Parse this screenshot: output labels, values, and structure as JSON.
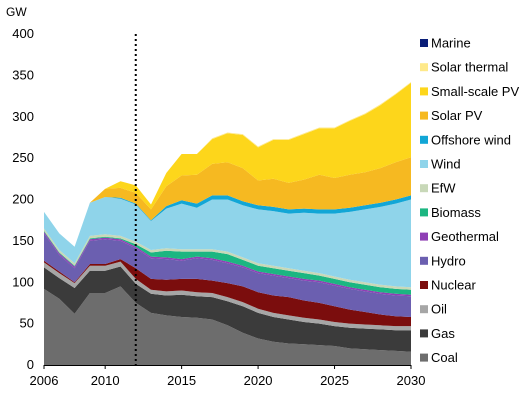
{
  "chart_data": {
    "type": "area",
    "stacked": true,
    "ylabel": "GW",
    "ylim": [
      0,
      400
    ],
    "yticks": [
      0,
      50,
      100,
      150,
      200,
      250,
      300,
      350,
      400
    ],
    "xlim": [
      2006,
      2030
    ],
    "xticks": [
      2006,
      2010,
      2015,
      2020,
      2025,
      2030
    ],
    "projection_start": 2012,
    "grid": false,
    "legend_position": "right",
    "x": [
      2006,
      2007,
      2008,
      2009,
      2010,
      2011,
      2012,
      2013,
      2014,
      2015,
      2016,
      2017,
      2018,
      2019,
      2020,
      2021,
      2022,
      2023,
      2024,
      2025,
      2026,
      2027,
      2028,
      2029,
      2030
    ],
    "series": [
      {
        "name": "Coal",
        "color": "#6d6d6d",
        "values": [
          92,
          80,
          62,
          87,
          87,
          95,
          75,
          63,
          60,
          58,
          57,
          55,
          48,
          39,
          32,
          28,
          26,
          25,
          24,
          23,
          20,
          19,
          18,
          17,
          16
        ]
      },
      {
        "name": "Gas",
        "color": "#3b3b3b",
        "values": [
          26,
          25,
          31,
          27,
          27,
          24,
          23,
          23,
          24,
          27,
          26,
          27,
          29,
          32,
          31,
          30,
          29,
          27,
          26,
          24,
          25,
          25,
          25,
          25,
          26
        ]
      },
      {
        "name": "Oil",
        "color": "#a6a6a6",
        "values": [
          6,
          6,
          6,
          6,
          6,
          6,
          6,
          5,
          5,
          5,
          5,
          5,
          5,
          5,
          5,
          5,
          5,
          5,
          5,
          5,
          5,
          5,
          5,
          5,
          5
        ]
      },
      {
        "name": "Nuclear",
        "color": "#7b0d0d",
        "values": [
          2,
          2,
          1,
          2,
          2,
          3,
          13,
          13,
          14,
          14,
          16,
          15,
          17,
          19,
          20,
          21,
          22,
          21,
          20,
          19,
          17,
          15,
          13,
          12,
          11
        ]
      },
      {
        "name": "Hydro",
        "color": "#6b5fb0",
        "values": [
          33,
          20,
          17,
          28,
          30,
          22,
          24,
          25,
          25,
          22,
          25,
          25,
          24,
          23,
          23,
          24,
          23,
          24,
          25,
          25,
          25,
          25,
          25,
          25,
          25
        ]
      },
      {
        "name": "Geothermal",
        "color": "#8f3fb5",
        "values": [
          2,
          2,
          2,
          2,
          2,
          2,
          2,
          2,
          2,
          2,
          2,
          2,
          2,
          2,
          2,
          2,
          2,
          2,
          2,
          2,
          2,
          2,
          2,
          2,
          2
        ]
      },
      {
        "name": "Biomass",
        "color": "#1cb681",
        "values": [
          1,
          1,
          1,
          1,
          1,
          1,
          3,
          5,
          8,
          9,
          6,
          8,
          9,
          7,
          7,
          7,
          7,
          7,
          6,
          6,
          6,
          6,
          6,
          6,
          6
        ]
      },
      {
        "name": "EfW",
        "color": "#c8d8b8",
        "values": [
          3,
          3,
          3,
          3,
          3,
          3,
          3,
          3,
          3,
          3,
          3,
          3,
          3,
          3,
          3,
          3,
          3,
          3,
          3,
          3,
          3,
          3,
          3,
          3,
          3
        ]
      },
      {
        "name": "Wind",
        "color": "#8fd4ea",
        "values": [
          20,
          20,
          20,
          40,
          45,
          45,
          45,
          35,
          48,
          55,
          50,
          60,
          63,
          63,
          65,
          66,
          66,
          70,
          72,
          76,
          82,
          88,
          94,
          100,
          106
        ]
      },
      {
        "name": "Offshore wind",
        "color": "#12a6d6",
        "values": [
          0,
          0,
          0,
          0,
          0,
          1,
          1,
          1,
          3,
          4,
          5,
          5,
          5,
          5,
          5,
          5,
          5,
          5,
          5,
          5,
          5,
          5,
          5,
          5,
          5
        ]
      },
      {
        "name": "Solar PV",
        "color": "#f6b921",
        "values": [
          0,
          0,
          0,
          0,
          10,
          12,
          13,
          13,
          24,
          30,
          35,
          38,
          40,
          40,
          30,
          34,
          32,
          35,
          42,
          38,
          40,
          40,
          42,
          45,
          46
        ]
      },
      {
        "name": "Small-scale PV",
        "color": "#fdd61b",
        "values": [
          0,
          0,
          0,
          0,
          0,
          8,
          9,
          6,
          16,
          26,
          25,
          30,
          35,
          40,
          40,
          47,
          52,
          55,
          56,
          60,
          65,
          70,
          76,
          82,
          90
        ]
      },
      {
        "name": "Solar thermal",
        "color": "#fee98a",
        "values": [
          0,
          0,
          0,
          0,
          0,
          0,
          0,
          0,
          0,
          0,
          0,
          1,
          1,
          1,
          1,
          1,
          1,
          1,
          1,
          1,
          1,
          1,
          1,
          1,
          1
        ]
      },
      {
        "name": "Marine",
        "color": "#0a1e78",
        "values": [
          0,
          0,
          0,
          0,
          0,
          0,
          0,
          0,
          0,
          0,
          0,
          0,
          0,
          0,
          0,
          0,
          0,
          0,
          0,
          0,
          0,
          0,
          0,
          0,
          0
        ]
      }
    ]
  }
}
